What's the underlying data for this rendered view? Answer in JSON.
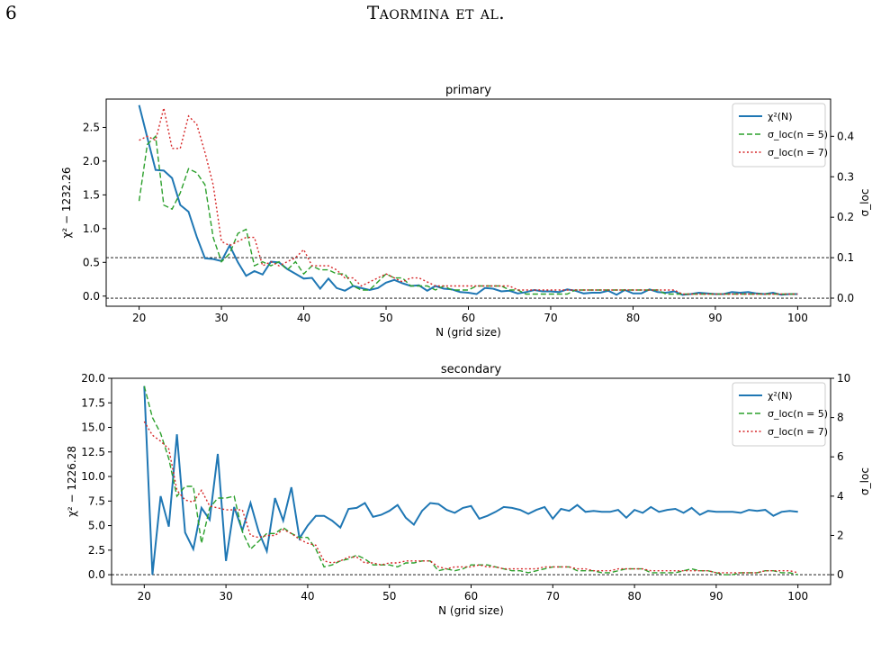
{
  "page": {
    "number": "6",
    "running_head": "Taormina et al."
  },
  "colors": {
    "chi2": "#1f77b4",
    "n5": "#2ca02c",
    "n7": "#d62728"
  },
  "chart_data": [
    {
      "type": "line",
      "title": "primary",
      "xlabel": "N (grid size)",
      "ylabel": "χ² − 1232.26",
      "y2label": "σ_loc",
      "xlim": [
        16,
        104
      ],
      "ylim": [
        -0.15,
        2.92
      ],
      "y2lim": [
        -0.02,
        0.492
      ],
      "xticks": [
        20,
        30,
        40,
        50,
        60,
        70,
        80,
        90,
        100
      ],
      "yticks": [
        0.0,
        0.5,
        1.0,
        1.5,
        2.0,
        2.5
      ],
      "ytick_labels": [
        "0.0",
        "0.5",
        "1.0",
        "1.5",
        "2.0",
        "2.5"
      ],
      "y2ticks": [
        0.0,
        0.1,
        0.2,
        0.3,
        0.4
      ],
      "y2tick_labels": [
        "0.0",
        "0.1",
        "0.2",
        "0.3",
        "0.4"
      ],
      "hlines_y2": [
        0.0,
        0.1
      ],
      "legend_position": "top-right",
      "x": [
        20,
        21,
        22,
        23,
        24,
        25,
        26,
        27,
        28,
        29,
        30,
        31,
        32,
        33,
        34,
        35,
        36,
        37,
        38,
        39,
        40,
        41,
        42,
        43,
        44,
        45,
        46,
        47,
        48,
        49,
        50,
        51,
        52,
        53,
        54,
        55,
        56,
        57,
        58,
        59,
        60,
        61,
        62,
        63,
        64,
        65,
        66,
        67,
        68,
        69,
        70,
        71,
        72,
        73,
        74,
        75,
        76,
        77,
        78,
        79,
        80,
        81,
        82,
        83,
        84,
        85,
        86,
        87,
        88,
        89,
        90,
        91,
        92,
        93,
        94,
        95,
        96,
        97,
        98,
        99,
        100
      ],
      "series": [
        {
          "name": "χ²(N)",
          "axis": "left",
          "style": "solid",
          "color": "#1f77b4",
          "values": [
            2.83,
            2.35,
            1.87,
            1.86,
            1.75,
            1.35,
            1.25,
            0.88,
            0.56,
            0.55,
            0.52,
            0.75,
            0.5,
            0.3,
            0.37,
            0.32,
            0.51,
            0.5,
            0.4,
            0.33,
            0.26,
            0.27,
            0.11,
            0.26,
            0.12,
            0.08,
            0.15,
            0.12,
            0.09,
            0.12,
            0.2,
            0.24,
            0.19,
            0.15,
            0.16,
            0.08,
            0.15,
            0.11,
            0.1,
            0.06,
            0.05,
            0.03,
            0.12,
            0.11,
            0.07,
            0.08,
            0.04,
            0.06,
            0.09,
            0.07,
            0.07,
            0.06,
            0.1,
            0.08,
            0.04,
            0.05,
            0.05,
            0.08,
            0.02,
            0.09,
            0.04,
            0.04,
            0.1,
            0.06,
            0.05,
            0.07,
            0.02,
            0.03,
            0.05,
            0.04,
            0.03,
            0.03,
            0.06,
            0.05,
            0.06,
            0.04,
            0.03,
            0.05,
            0.02,
            0.03,
            0.03
          ]
        },
        {
          "name": "σ_loc(n = 5)",
          "axis": "right",
          "style": "dashed",
          "color": "#2ca02c",
          "values": [
            0.24,
            0.38,
            0.4,
            0.23,
            0.22,
            0.26,
            0.32,
            0.31,
            0.28,
            0.15,
            0.09,
            0.11,
            0.16,
            0.17,
            0.08,
            0.09,
            0.08,
            0.09,
            0.07,
            0.09,
            0.06,
            0.08,
            0.07,
            0.07,
            0.06,
            0.06,
            0.03,
            0.02,
            0.02,
            0.04,
            0.06,
            0.05,
            0.05,
            0.03,
            0.03,
            0.03,
            0.02,
            0.03,
            0.02,
            0.02,
            0.02,
            0.03,
            0.03,
            0.03,
            0.03,
            0.02,
            0.02,
            0.01,
            0.01,
            0.01,
            0.01,
            0.01,
            0.01,
            0.02,
            0.02,
            0.02,
            0.02,
            0.02,
            0.02,
            0.02,
            0.02,
            0.02,
            0.02,
            0.02,
            0.01,
            0.01,
            0.01,
            0.01,
            0.01,
            0.01,
            0.01,
            0.01,
            0.01,
            0.01,
            0.01,
            0.01,
            0.01,
            0.01,
            0.01,
            0.01,
            0.01
          ]
        },
        {
          "name": "σ_loc(n = 7)",
          "axis": "right",
          "style": "dotted",
          "color": "#d62728",
          "values": [
            0.39,
            0.4,
            0.39,
            0.47,
            0.37,
            0.37,
            0.45,
            0.43,
            0.36,
            0.28,
            0.14,
            0.13,
            0.14,
            0.15,
            0.15,
            0.08,
            0.09,
            0.08,
            0.09,
            0.1,
            0.12,
            0.08,
            0.08,
            0.08,
            0.07,
            0.05,
            0.05,
            0.03,
            0.04,
            0.05,
            0.06,
            0.05,
            0.04,
            0.05,
            0.05,
            0.04,
            0.03,
            0.03,
            0.03,
            0.03,
            0.03,
            0.03,
            0.03,
            0.03,
            0.03,
            0.03,
            0.02,
            0.02,
            0.02,
            0.02,
            0.02,
            0.02,
            0.02,
            0.02,
            0.02,
            0.02,
            0.02,
            0.02,
            0.02,
            0.02,
            0.02,
            0.02,
            0.02,
            0.02,
            0.02,
            0.02,
            0.01,
            0.01,
            0.01,
            0.01,
            0.01,
            0.01,
            0.01,
            0.01,
            0.01,
            0.01,
            0.01,
            0.01,
            0.01,
            0.01,
            0.01
          ]
        }
      ]
    },
    {
      "type": "line",
      "title": "secondary",
      "xlabel": "N (grid size)",
      "ylabel": "χ² − 1226.28",
      "y2label": "σ_loc",
      "xlim": [
        16,
        104
      ],
      "ylim": [
        -1.0,
        20.0
      ],
      "y2lim": [
        -0.5,
        10.0
      ],
      "xticks": [
        20,
        30,
        40,
        50,
        60,
        70,
        80,
        90,
        100
      ],
      "yticks": [
        0.0,
        2.5,
        5.0,
        7.5,
        10.0,
        12.5,
        15.0,
        17.5,
        20.0
      ],
      "ytick_labels": [
        "0.0",
        "2.5",
        "5.0",
        "7.5",
        "10.0",
        "12.5",
        "15.0",
        "17.5",
        "20.0"
      ],
      "y2ticks": [
        0,
        2,
        4,
        6,
        8,
        10
      ],
      "y2tick_labels": [
        "0",
        "2",
        "4",
        "6",
        "8",
        "10"
      ],
      "hlines_y2": [
        0.0
      ],
      "legend_position": "top-right",
      "x": [
        20,
        21,
        22,
        23,
        24,
        25,
        26,
        27,
        28,
        29,
        30,
        31,
        32,
        33,
        34,
        35,
        36,
        37,
        38,
        39,
        40,
        41,
        42,
        43,
        44,
        45,
        46,
        47,
        48,
        49,
        50,
        51,
        52,
        53,
        54,
        55,
        56,
        57,
        58,
        59,
        60,
        61,
        62,
        63,
        64,
        65,
        66,
        67,
        68,
        69,
        70,
        71,
        72,
        73,
        74,
        75,
        76,
        77,
        78,
        79,
        80,
        81,
        82,
        83,
        84,
        85,
        86,
        87,
        88,
        89,
        90,
        91,
        92,
        93,
        94,
        95,
        96,
        97,
        98,
        99,
        100
      ],
      "series": [
        {
          "name": "χ²(N)",
          "axis": "left",
          "style": "solid",
          "color": "#1f77b4",
          "values": [
            19.2,
            0.0,
            8.0,
            4.9,
            14.3,
            4.3,
            2.6,
            6.8,
            5.6,
            12.3,
            1.4,
            6.9,
            4.5,
            7.3,
            4.4,
            2.4,
            7.8,
            5.5,
            8.9,
            3.7,
            5.0,
            6.0,
            6.0,
            5.5,
            4.8,
            6.7,
            6.8,
            7.3,
            5.9,
            6.1,
            6.5,
            7.1,
            5.8,
            5.1,
            6.5,
            7.3,
            7.2,
            6.6,
            6.3,
            6.8,
            7.0,
            5.7,
            6.0,
            6.4,
            6.9,
            6.8,
            6.6,
            6.2,
            6.6,
            6.9,
            5.7,
            6.7,
            6.5,
            7.1,
            6.4,
            6.5,
            6.4,
            6.4,
            6.6,
            5.8,
            6.6,
            6.3,
            6.9,
            6.4,
            6.6,
            6.7,
            6.3,
            6.8,
            6.1,
            6.5,
            6.4,
            6.4,
            6.4,
            6.3,
            6.6,
            6.5,
            6.6,
            6.0,
            6.4,
            6.5,
            6.4
          ]
        },
        {
          "name": "σ_loc(n = 5)",
          "axis": "right",
          "style": "dashed",
          "color": "#2ca02c",
          "values": [
            9.6,
            8.0,
            7.2,
            5.9,
            4.0,
            4.5,
            4.5,
            1.6,
            3.4,
            3.9,
            3.9,
            4.0,
            2.2,
            1.3,
            1.7,
            2.1,
            2.1,
            2.4,
            2.1,
            1.9,
            1.9,
            1.3,
            0.4,
            0.5,
            0.7,
            0.8,
            1.0,
            0.8,
            0.5,
            0.5,
            0.5,
            0.4,
            0.6,
            0.6,
            0.7,
            0.7,
            0.2,
            0.3,
            0.2,
            0.3,
            0.5,
            0.5,
            0.5,
            0.4,
            0.3,
            0.2,
            0.2,
            0.1,
            0.2,
            0.3,
            0.4,
            0.4,
            0.4,
            0.2,
            0.2,
            0.2,
            0.1,
            0.1,
            0.2,
            0.3,
            0.3,
            0.3,
            0.1,
            0.1,
            0.1,
            0.1,
            0.2,
            0.3,
            0.2,
            0.2,
            0.1,
            0.0,
            0.0,
            0.1,
            0.1,
            0.1,
            0.2,
            0.2,
            0.1,
            0.1,
            0.0
          ]
        },
        {
          "name": "σ_loc(n = 7)",
          "axis": "right",
          "style": "dotted",
          "color": "#d62728",
          "values": [
            7.8,
            7.1,
            6.8,
            6.4,
            4.3,
            3.8,
            3.7,
            4.3,
            3.5,
            3.4,
            3.3,
            3.3,
            3.3,
            2.0,
            1.9,
            2.0,
            2.0,
            2.3,
            2.1,
            1.8,
            1.6,
            1.5,
            0.7,
            0.6,
            0.7,
            0.9,
            0.9,
            0.6,
            0.6,
            0.5,
            0.6,
            0.6,
            0.7,
            0.7,
            0.7,
            0.7,
            0.4,
            0.3,
            0.4,
            0.4,
            0.4,
            0.5,
            0.4,
            0.4,
            0.3,
            0.3,
            0.3,
            0.3,
            0.3,
            0.4,
            0.4,
            0.4,
            0.4,
            0.3,
            0.3,
            0.2,
            0.2,
            0.2,
            0.3,
            0.3,
            0.3,
            0.3,
            0.2,
            0.2,
            0.2,
            0.2,
            0.2,
            0.2,
            0.2,
            0.2,
            0.1,
            0.1,
            0.1,
            0.1,
            0.1,
            0.1,
            0.2,
            0.2,
            0.2,
            0.2,
            0.1
          ]
        }
      ]
    }
  ]
}
